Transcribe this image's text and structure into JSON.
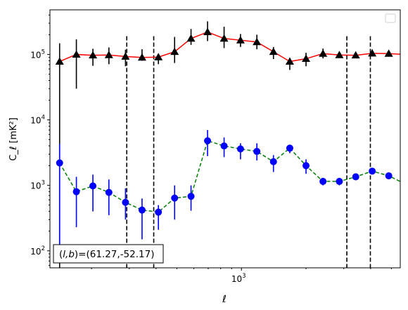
{
  "chart_data": {
    "type": "scatter",
    "title": "",
    "xlabel": "ℓ",
    "ylabel": "C_ℓ  [mK²]",
    "xscale": "log",
    "yscale": "log",
    "xlim": [
      128,
      5500
    ],
    "ylim": [
      55,
      480000
    ],
    "xticks": [
      {
        "value": 1000,
        "base": "10",
        "exp": "3"
      }
    ],
    "yticks": [
      {
        "value": 100,
        "base": "10",
        "exp": "2"
      },
      {
        "value": 1000,
        "base": "10",
        "exp": "3"
      },
      {
        "value": 10000,
        "base": "10",
        "exp": "4"
      },
      {
        "value": 100000,
        "base": "10",
        "exp": "5"
      }
    ],
    "legend": {
      "placement": "top-right",
      "entries": []
    },
    "annotation": "(l, b)=(61.27,-52.17)",
    "vlines": [
      292,
      390,
      3100,
      3990
    ],
    "series": [
      {
        "color": "#ff0000",
        "marker": "triangle",
        "marker_color": "#000000",
        "errorbar_color": "#000000",
        "linestyle": "solid",
        "x": [
          142,
          170,
          203,
          241,
          288,
          344,
          410,
          488,
          582,
          695,
          830,
          990,
          1180,
          1410,
          1680,
          2000,
          2400,
          2860,
          3410,
          4070,
          4860,
          5800
        ],
        "y": [
          78000,
          100000,
          97000,
          98000,
          93000,
          90000,
          91000,
          110000,
          175000,
          220000,
          175000,
          165000,
          155000,
          110000,
          78000,
          86000,
          103000,
          98000,
          97000,
          104000,
          103000,
          100000
        ],
        "yerr_low": [
          78000,
          70000,
          30000,
          27000,
          27000,
          10000,
          20000,
          36000,
          35000,
          60000,
          50000,
          35000,
          35000,
          25000,
          20000,
          20000,
          16000,
          8000,
          7000,
          10000,
          9000,
          6000
        ],
        "yerr_high": [
          70000,
          70000,
          25000,
          30000,
          25000,
          30000,
          10000,
          75000,
          70000,
          100000,
          90000,
          40000,
          45000,
          20000,
          10000,
          20000,
          20000,
          10000,
          10000,
          15000,
          10000,
          8000
        ]
      },
      {
        "color": "#008000",
        "marker": "circle",
        "marker_color": "#0000ff",
        "errorbar_color": "#0000ff",
        "linestyle": "dashed",
        "x": [
          142,
          170,
          203,
          241,
          288,
          344,
          410,
          488,
          582,
          695,
          830,
          990,
          1180,
          1410,
          1680,
          2000,
          2400,
          2860,
          3410,
          4070,
          4860,
          5800
        ],
        "y": [
          2200,
          800,
          980,
          780,
          550,
          420,
          390,
          640,
          680,
          4800,
          4000,
          3600,
          3300,
          2300,
          3700,
          2000,
          1150,
          1150,
          1350,
          1650,
          1400,
          1050
        ],
        "yerr_low": [
          2100,
          570,
          580,
          430,
          250,
          270,
          180,
          340,
          270,
          2000,
          1300,
          1100,
          900,
          700,
          600,
          500,
          150,
          150,
          150,
          150,
          150,
          150
        ],
        "yerr_high": [
          2100,
          550,
          480,
          450,
          350,
          210,
          110,
          360,
          320,
          2200,
          1400,
          800,
          1100,
          600,
          500,
          500,
          150,
          150,
          150,
          150,
          150,
          150
        ]
      }
    ]
  }
}
